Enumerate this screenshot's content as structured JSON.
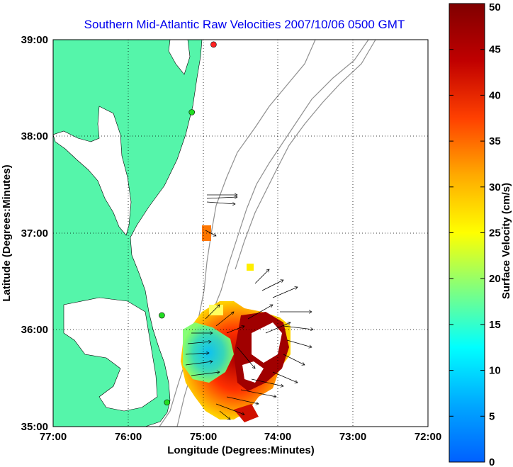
{
  "title": "Southern Mid-Atlantic Raw Velocities 2007/10/06 0500 GMT",
  "x_axis": {
    "label": "Longitude (Degrees:Minutes)",
    "ticks": [
      "77:00",
      "76:00",
      "75:00",
      "74:00",
      "73:00",
      "72:00"
    ]
  },
  "y_axis": {
    "label": "Latitude (Degrees:Minutes)",
    "ticks": [
      "39:00",
      "38:00",
      "37:00",
      "36:00",
      "35:00"
    ]
  },
  "colorbar": {
    "label": "Surface Velocity (cm/s)",
    "ticks": [
      "50",
      "45",
      "40",
      "35",
      "30",
      "25",
      "20",
      "15",
      "10",
      "5",
      "0"
    ]
  },
  "colors": {
    "land": "#55f5aa",
    "water": "#ffffff",
    "title": "#0000ee",
    "bathymetry": "#909090",
    "grid": "#000000",
    "station": "#22dd22",
    "station_alt": "#ff2222"
  },
  "chart_data": {
    "type": "heatmap",
    "xlim": [
      -77,
      -72
    ],
    "ylim": [
      35,
      39
    ],
    "clim": [
      0,
      50
    ],
    "grid": true,
    "stations": [
      {
        "lon": -74.86,
        "lat": 38.95,
        "color": "red"
      },
      {
        "lon": -75.15,
        "lat": 38.25,
        "color": "green"
      },
      {
        "lon": -75.55,
        "lat": 36.15,
        "color": "green"
      },
      {
        "lon": -75.48,
        "lat": 35.25,
        "color": "green"
      }
    ]
  }
}
